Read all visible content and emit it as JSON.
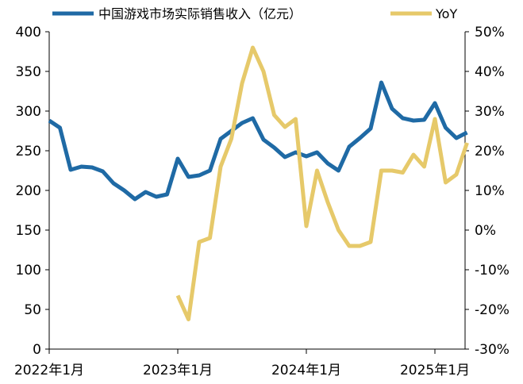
{
  "chart_data": {
    "type": "line",
    "x": [
      "2022-01",
      "2022-02",
      "2022-03",
      "2022-04",
      "2022-05",
      "2022-06",
      "2022-07",
      "2022-08",
      "2022-09",
      "2022-10",
      "2022-11",
      "2022-12",
      "2023-01",
      "2023-02",
      "2023-03",
      "2023-04",
      "2023-05",
      "2023-06",
      "2023-07",
      "2023-08",
      "2023-09",
      "2023-10",
      "2023-11",
      "2023-12",
      "2024-01",
      "2024-02",
      "2024-03",
      "2024-04",
      "2024-05",
      "2024-06",
      "2024-07",
      "2024-08",
      "2024-09",
      "2024-10",
      "2024-11",
      "2024-12",
      "2025-01",
      "2025-02",
      "2025-03",
      "2025-04"
    ],
    "x_tick_labels": [
      {
        "label": "2022年1月",
        "at": "2022-01"
      },
      {
        "label": "2023年1月",
        "at": "2023-01"
      },
      {
        "label": "2024年1月",
        "at": "2024-01"
      },
      {
        "label": "2025年1月",
        "at": "2025-01"
      }
    ],
    "y_left": {
      "ylim": [
        0,
        400
      ],
      "ticks": [
        0,
        50,
        100,
        150,
        200,
        250,
        300,
        350,
        400
      ],
      "tick_labels": [
        "0",
        "50",
        "100",
        "150",
        "200",
        "250",
        "300",
        "350",
        "400"
      ]
    },
    "y_right": {
      "ylim": [
        -30,
        50
      ],
      "ticks": [
        -30,
        -20,
        -10,
        0,
        10,
        20,
        30,
        40,
        50
      ],
      "tick_labels": [
        "-30%",
        "-20%",
        "-10%",
        "0%",
        "10%",
        "20%",
        "30%",
        "40%",
        "50%"
      ]
    },
    "series": [
      {
        "name": "中国游戏市场实际销售收入（亿元）",
        "axis": "left",
        "color": "#1f6aa5",
        "values": [
          288,
          279,
          226,
          230,
          229,
          224,
          209,
          200,
          189,
          198,
          192,
          195,
          240,
          217,
          219,
          225,
          265,
          275,
          285,
          291,
          264,
          254,
          242,
          248,
          243,
          248,
          234,
          225,
          255,
          266,
          278,
          336,
          303,
          291,
          288,
          289,
          310,
          279,
          266,
          273
        ]
      },
      {
        "name": "YoY",
        "axis": "right",
        "color": "#e6c96a",
        "values": [
          null,
          null,
          null,
          null,
          null,
          null,
          null,
          null,
          null,
          null,
          null,
          null,
          -16.5,
          -22.5,
          -3,
          -2,
          16,
          23,
          37,
          46,
          40,
          29,
          26,
          28,
          1,
          15,
          7,
          0,
          -4,
          -4,
          -3,
          15,
          15,
          14.5,
          19,
          16,
          28,
          12,
          14,
          22
        ]
      }
    ],
    "legend_position": "top",
    "grid": false
  }
}
